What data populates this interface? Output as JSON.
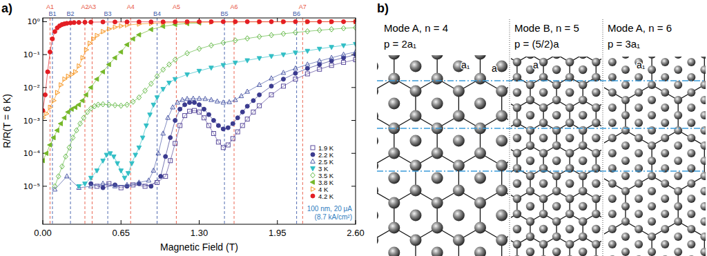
{
  "figure": {
    "panel_labels": [
      "a)",
      "b)"
    ]
  },
  "chart_data": {
    "type": "line",
    "x_label": "Magnetic Field (T)",
    "y_label": "R/R(T = 6 K)",
    "xlim": [
      0,
      2.6
    ],
    "ylim": [
      7e-07,
      1.3
    ],
    "log": "y",
    "xticks": [
      {
        "value": 0,
        "label": "0.00"
      },
      {
        "value": 0.65,
        "label": "0.65"
      },
      {
        "value": 1.3,
        "label": "1.30"
      },
      {
        "value": 1.95,
        "label": "1.95"
      },
      {
        "value": 2.6,
        "label": "2.60"
      }
    ],
    "yticks": [
      {
        "value": 1e-05,
        "label": "10⁻⁵"
      },
      {
        "value": 0.0001,
        "label": "10⁻⁴"
      },
      {
        "value": 0.001,
        "label": "10⁻³"
      },
      {
        "value": 0.01,
        "label": "10⁻²"
      },
      {
        "value": 0.1,
        "label": "10⁻¹"
      },
      {
        "value": 1,
        "label": "10⁰"
      }
    ],
    "legend": "lower right",
    "series": [
      {
        "name": "1.9 K",
        "color": "#5a4b9c",
        "marker": "open-square",
        "x": [
          0.45,
          0.55,
          0.65,
          0.75,
          0.85,
          0.95,
          1.02,
          1.06,
          1.1,
          1.14,
          1.18,
          1.22,
          1.26,
          1.3,
          1.34,
          1.38,
          1.42,
          1.46,
          1.5,
          1.54,
          1.58,
          1.62,
          1.66,
          1.7,
          1.75,
          1.8,
          1.9,
          2.0,
          2.1,
          2.2,
          2.3,
          2.4,
          2.5,
          2.6
        ],
        "values": [
          1e-05,
          1.2e-05,
          9e-06,
          1.1e-05,
          1e-05,
          1.3e-05,
          2e-05,
          6e-05,
          0.0002,
          0.0007,
          0.0014,
          0.0019,
          0.002,
          0.0018,
          0.0012,
          0.0007,
          0.0004,
          0.00022,
          0.00015,
          0.00018,
          0.00028,
          0.00045,
          0.0007,
          0.0011,
          0.0018,
          0.0028,
          0.006,
          0.011,
          0.018,
          0.026,
          0.036,
          0.047,
          0.058,
          0.07
        ]
      },
      {
        "name": "2.2 K",
        "color": "#3b3b8f",
        "marker": "circle",
        "x": [
          0.4,
          0.5,
          0.6,
          0.7,
          0.8,
          0.9,
          0.98,
          1.02,
          1.06,
          1.1,
          1.14,
          1.18,
          1.22,
          1.26,
          1.3,
          1.34,
          1.38,
          1.42,
          1.46,
          1.5,
          1.54,
          1.58,
          1.62,
          1.66,
          1.7,
          1.75,
          1.8,
          1.9,
          2.0,
          2.1,
          2.2,
          2.3,
          2.4,
          2.5,
          2.6
        ],
        "values": [
          1.2e-05,
          9e-06,
          1.1e-05,
          1e-05,
          1.2e-05,
          1e-05,
          2e-05,
          8e-05,
          0.0003,
          0.001,
          0.0022,
          0.003,
          0.0035,
          0.0035,
          0.003,
          0.0022,
          0.0015,
          0.001,
          0.0007,
          0.00055,
          0.0006,
          0.0008,
          0.0012,
          0.0018,
          0.0027,
          0.004,
          0.006,
          0.011,
          0.018,
          0.027,
          0.038,
          0.05,
          0.065,
          0.08,
          0.1
        ]
      },
      {
        "name": "2.5 K",
        "color": "#4e5ba8",
        "marker": "open-triangle-up",
        "x": [
          0.1,
          0.2,
          0.3,
          0.4,
          0.5,
          0.6,
          0.7,
          0.8,
          0.88,
          0.92,
          0.96,
          1.0,
          1.04,
          1.08,
          1.12,
          1.16,
          1.2,
          1.25,
          1.3,
          1.35,
          1.4,
          1.45,
          1.5,
          1.55,
          1.6,
          1.65,
          1.7,
          1.8,
          1.9,
          2.0,
          2.1,
          2.2,
          2.3,
          2.4,
          2.5,
          2.6
        ],
        "values": [
          8e-06,
          2e-05,
          9e-06,
          1e-05,
          1.2e-05,
          1e-05,
          1.1e-05,
          1.3e-05,
          1.5e-05,
          3e-05,
          0.0001,
          0.0004,
          0.0012,
          0.0025,
          0.0035,
          0.0042,
          0.0045,
          0.0046,
          0.0046,
          0.0045,
          0.0042,
          0.0038,
          0.0035,
          0.0036,
          0.0042,
          0.0055,
          0.0075,
          0.012,
          0.019,
          0.028,
          0.038,
          0.05,
          0.064,
          0.08,
          0.1,
          0.12
        ]
      },
      {
        "name": "3 K",
        "color": "#33bfc6",
        "marker": "triangle-down",
        "x": [
          0.3,
          0.35,
          0.4,
          0.45,
          0.5,
          0.53,
          0.56,
          0.59,
          0.62,
          0.65,
          0.68,
          0.71,
          0.74,
          0.77,
          0.8,
          0.83,
          0.86,
          0.89,
          0.92,
          0.95,
          1.0,
          1.05,
          1.1,
          1.2,
          1.3,
          1.4,
          1.5,
          1.6,
          1.7,
          1.8,
          1.9,
          2.0,
          2.1,
          2.2,
          2.3,
          2.4,
          2.5,
          2.6
        ],
        "values": [
          1e-05,
          1.2e-05,
          1.8e-05,
          3e-05,
          6e-05,
          9e-05,
          0.0001,
          8e-05,
          5e-05,
          3e-05,
          1.8e-05,
          2.5e-05,
          5e-05,
          9e-05,
          0.00015,
          0.0003,
          0.0007,
          0.0015,
          0.003,
          0.005,
          0.009,
          0.014,
          0.018,
          0.025,
          0.032,
          0.04,
          0.048,
          0.057,
          0.067,
          0.078,
          0.09,
          0.1,
          0.115,
          0.13,
          0.15,
          0.17,
          0.19,
          0.21
        ]
      },
      {
        "name": "3.5 K",
        "color": "#63b946",
        "marker": "open-diamond",
        "x": [
          0.1,
          0.13,
          0.16,
          0.19,
          0.22,
          0.25,
          0.28,
          0.31,
          0.34,
          0.37,
          0.4,
          0.43,
          0.46,
          0.5,
          0.55,
          0.6,
          0.65,
          0.7,
          0.75,
          0.8,
          0.85,
          0.9,
          0.95,
          1.0,
          1.05,
          1.1,
          1.2,
          1.3,
          1.4,
          1.5,
          1.6,
          1.7,
          1.8,
          1.9,
          2.0,
          2.1,
          2.2,
          2.3,
          2.4,
          2.5,
          2.6
        ],
        "values": [
          1e-05,
          2e-05,
          4e-05,
          8e-05,
          0.00015,
          0.0003,
          0.0005,
          0.0008,
          0.0012,
          0.0018,
          0.0023,
          0.0027,
          0.003,
          0.0031,
          0.003,
          0.0029,
          0.0028,
          0.003,
          0.0037,
          0.005,
          0.008,
          0.013,
          0.022,
          0.035,
          0.05,
          0.07,
          0.11,
          0.15,
          0.19,
          0.23,
          0.27,
          0.31,
          0.35,
          0.39,
          0.43,
          0.47,
          0.51,
          0.55,
          0.59,
          0.63,
          0.66
        ]
      },
      {
        "name": "3.8 K",
        "color": "#76b82a",
        "marker": "triangle-left",
        "x": [
          0,
          0.03,
          0.06,
          0.09,
          0.12,
          0.15,
          0.18,
          0.21,
          0.24,
          0.27,
          0.3,
          0.33,
          0.36,
          0.4,
          0.45,
          0.5,
          0.55,
          0.6,
          0.65,
          0.7,
          0.75,
          0.8,
          0.9,
          1.0,
          1.1,
          1.2,
          1.3
        ],
        "values": [
          6e-05,
          0.0001,
          0.00018,
          0.0003,
          0.0005,
          0.0008,
          0.0012,
          0.0018,
          0.0022,
          0.0025,
          0.003,
          0.004,
          0.006,
          0.01,
          0.018,
          0.03,
          0.05,
          0.08,
          0.12,
          0.2,
          0.3,
          0.4,
          0.58,
          0.72,
          0.82,
          0.88,
          0.92
        ]
      },
      {
        "name": "4 K",
        "color": "#f7941d",
        "marker": "open-triangle-right",
        "x": [
          0,
          0.03,
          0.06,
          0.09,
          0.12,
          0.15,
          0.18,
          0.21,
          0.24,
          0.27,
          0.3,
          0.33,
          0.36,
          0.39,
          0.42,
          0.45,
          0.5,
          0.55,
          0.6,
          0.65,
          0.7,
          0.8,
          0.9,
          1.0,
          1.2,
          1.4,
          1.6,
          1.8,
          2.0,
          2.2,
          2.4,
          2.6
        ],
        "values": [
          0.0012,
          0.0016,
          0.0025,
          0.004,
          0.007,
          0.012,
          0.018,
          0.022,
          0.025,
          0.03,
          0.045,
          0.08,
          0.14,
          0.22,
          0.3,
          0.38,
          0.5,
          0.6,
          0.68,
          0.74,
          0.79,
          0.85,
          0.89,
          0.92,
          0.95,
          0.97,
          0.98,
          0.985,
          0.99,
          0.99,
          0.995,
          0.995
        ]
      },
      {
        "name": "4.2 K",
        "color": "#e31e24",
        "marker": "circle",
        "x": [
          0,
          0.02,
          0.04,
          0.06,
          0.08,
          0.1,
          0.12,
          0.14,
          0.16,
          0.18,
          0.2,
          0.23,
          0.26,
          0.3,
          0.35,
          0.4,
          0.5,
          0.6,
          0.7,
          0.8,
          0.9,
          1.0,
          1.1,
          1.2,
          1.3,
          1.4,
          1.5,
          1.6,
          1.7,
          1.8,
          1.9,
          2.0,
          2.1,
          2.2,
          2.3,
          2.4,
          2.5,
          2.6
        ],
        "values": [
          0.002,
          0.006,
          0.03,
          0.12,
          0.3,
          0.5,
          0.65,
          0.75,
          0.82,
          0.86,
          0.89,
          0.92,
          0.94,
          0.95,
          0.96,
          0.97,
          0.98,
          0.98,
          0.985,
          0.99,
          0.99,
          0.99,
          0.99,
          0.995,
          0.995,
          0.995,
          1,
          1,
          1,
          1,
          1,
          1,
          1,
          1,
          1,
          1,
          1,
          1
        ]
      }
    ],
    "annotations": {
      "vertical_lines": [
        {
          "color": "#e8553f",
          "line_style": "dashed",
          "lines": [
            {
              "label": "A1",
              "x": 0.06
            },
            {
              "label": "A2",
              "x": 0.35
            },
            {
              "label": "A3",
              "x": 0.41
            },
            {
              "label": "A4",
              "x": 0.73
            },
            {
              "label": "A5",
              "x": 1.11
            },
            {
              "label": "A6",
              "x": 1.59
            },
            {
              "label": "A7",
              "x": 2.16
            }
          ]
        },
        {
          "color": "#3d5aa8",
          "line_style": "dashed",
          "lines": [
            {
              "label": "B1",
              "x": 0.08
            },
            {
              "label": "B2",
              "x": 0.23
            },
            {
              "label": "B3",
              "x": 0.54
            },
            {
              "label": "B4",
              "x": 0.95
            },
            {
              "label": "B5",
              "x": 1.51
            },
            {
              "label": "B6",
              "x": 2.11
            }
          ]
        }
      ],
      "notes": {
        "color": "#2f7dc0",
        "text": [
          "100 nm, 20 μA",
          "(8.7 kA/cm²)"
        ]
      }
    }
  },
  "diagram": {
    "panels": [
      {
        "title": "Mode A, n = 4",
        "period": "p = 2a₁",
        "labels": [
          "a₁",
          "a"
        ]
      },
      {
        "title": "Mode B, n = 5",
        "period": "p = (5/2)a",
        "labels": [
          "a"
        ]
      },
      {
        "title": "Mode A, n = 6",
        "period": "p = 3a₁",
        "labels": [
          "a₁"
        ]
      }
    ]
  }
}
